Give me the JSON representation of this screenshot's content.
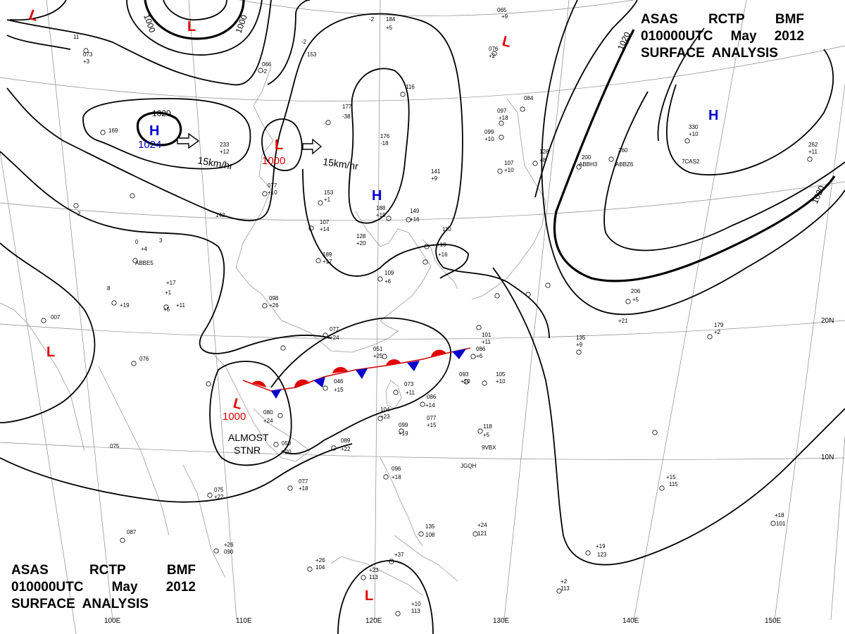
{
  "title_top": {
    "line1": [
      "ASAS",
      "RCTP",
      "BMF"
    ],
    "line2": [
      "010000UTC",
      "May",
      "2012"
    ],
    "line3": "SURFACE  ANALYSIS"
  },
  "title_bottom": {
    "line1": [
      "ASAS",
      "RCTP",
      "BMF"
    ],
    "line2": [
      "010000UTC",
      "May",
      "2012"
    ],
    "line3": "SURFACE  ANALYSIS"
  },
  "longitude_labels": [
    "100E",
    "110E",
    "120E",
    "130E",
    "140E",
    "150E"
  ],
  "latitude_labels": [
    "20N",
    "10N"
  ],
  "isobar_labels": [
    "1000",
    "1000",
    "1020",
    "1020",
    "1020"
  ],
  "systems": [
    {
      "type": "L",
      "pressure": ""
    },
    {
      "type": "L",
      "pressure": ""
    },
    {
      "type": "H",
      "pressure": "1024"
    },
    {
      "type": "L",
      "pressure": "1000"
    },
    {
      "type": "H",
      "pressure": ""
    },
    {
      "type": "L",
      "pressure": ""
    },
    {
      "type": "H",
      "pressure": ""
    },
    {
      "type": "L",
      "pressure": ""
    },
    {
      "type": "L",
      "pressure": "1000"
    },
    {
      "type": "L",
      "pressure": ""
    }
  ],
  "motions": [
    "15km/hr",
    "15km/hr"
  ],
  "notes": {
    "almost": "ALMOST",
    "stnr": "STNR"
  },
  "colors": {
    "low": "#e00000",
    "high": "#0000cc",
    "front_cold": "#0000cc",
    "front_warm": "#e00000"
  },
  "stations": [
    "11",
    "073",
    "+3",
    "169",
    "-2",
    "153",
    "-2",
    "184",
    "+5",
    "065",
    "+9",
    "076",
    "+2",
    "066",
    "-2",
    "177",
    "-38",
    "116",
    "084",
    "097",
    "+18",
    "099",
    "+10",
    "233",
    "+12",
    "176",
    "-18",
    "128",
    "+8",
    "107",
    "+10",
    "200",
    "260",
    "330",
    "+10",
    "262",
    "+11",
    "141",
    "+9",
    "077",
    "+10",
    "153",
    "+1",
    "188",
    "+19",
    "149",
    "+16",
    "142",
    "107",
    "+14",
    "128",
    "+20",
    "110",
    "+10",
    "+16",
    "189",
    "+17",
    "109",
    "+6",
    "098",
    "+26",
    "+11",
    "+19",
    "007",
    "076",
    "077",
    "+24",
    "051",
    "+25",
    "086",
    "+6",
    "206",
    "+5",
    "179",
    "+2",
    "135",
    "+9",
    "101",
    "+11",
    "105",
    "+10",
    "093",
    "+10",
    "046",
    "+15",
    "073",
    "+11",
    "086",
    "+14",
    "104",
    "+23",
    "099",
    "+19",
    "077",
    "+15",
    "080",
    "+24",
    "050",
    "+20",
    "089",
    "+22",
    "118",
    "+5",
    "075",
    "075",
    "+22",
    "077",
    "+18",
    "096",
    "+18",
    "087",
    "+26",
    "090",
    "+26",
    "104",
    "+23",
    "113",
    "+37",
    "135",
    "108",
    "+24",
    "121",
    "+19",
    "123",
    "+15",
    "115",
    "+18",
    "101",
    "+2",
    "113",
    "+10",
    "113",
    "+21",
    "JGQH",
    "9VBX",
    "7CAS2",
    "ABBZ6",
    "ABBH3",
    "ABBE5",
    "0",
    "+17",
    "+1",
    "8",
    "2",
    "3",
    "+4",
    "+5",
    "-5",
    "+6",
    "0"
  ]
}
